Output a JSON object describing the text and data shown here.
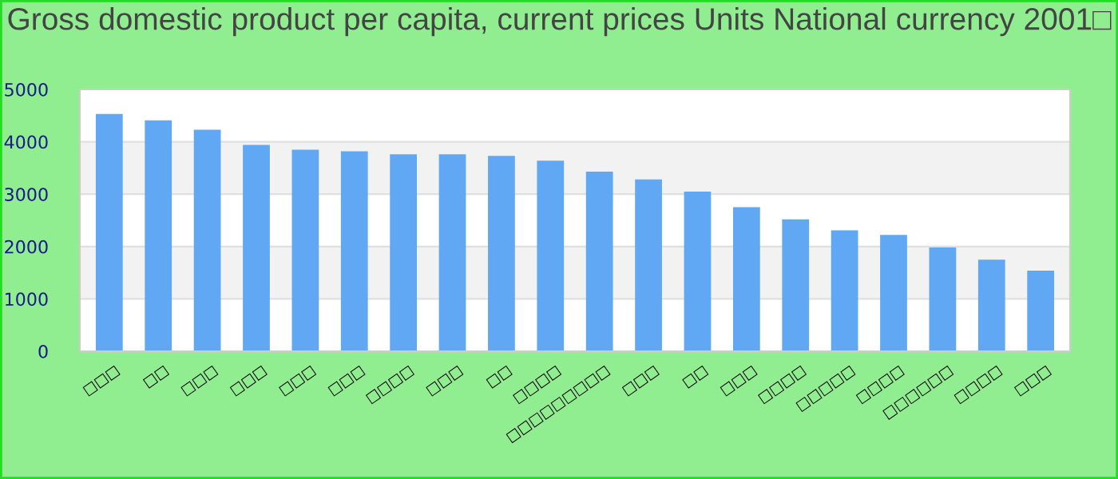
{
  "chart_data": {
    "type": "bar",
    "title": "Gross domestic product per capita, current prices Units National currency 2001□",
    "categories": [
      "□□□",
      "□□",
      "□□□",
      "□□□",
      "□□□",
      "□□□",
      "□□□□",
      "□□□",
      "□□",
      "□□□□",
      "□□□□□□□□□",
      "□□□",
      "□□",
      "□□□",
      "□□□□",
      "□□□□□",
      "□□□□",
      "□□□□□□",
      "□□□□",
      "□□□"
    ],
    "values": [
      4530,
      4410,
      4230,
      3940,
      3850,
      3820,
      3760,
      3760,
      3730,
      3640,
      3430,
      3280,
      3050,
      2750,
      2520,
      2310,
      2220,
      1980,
      1750,
      1540
    ],
    "color": "#60a8f4",
    "ylim": [
      0,
      5000
    ],
    "yticks": [
      0,
      1000,
      2000,
      3000,
      4000,
      5000
    ],
    "grid": "y"
  }
}
